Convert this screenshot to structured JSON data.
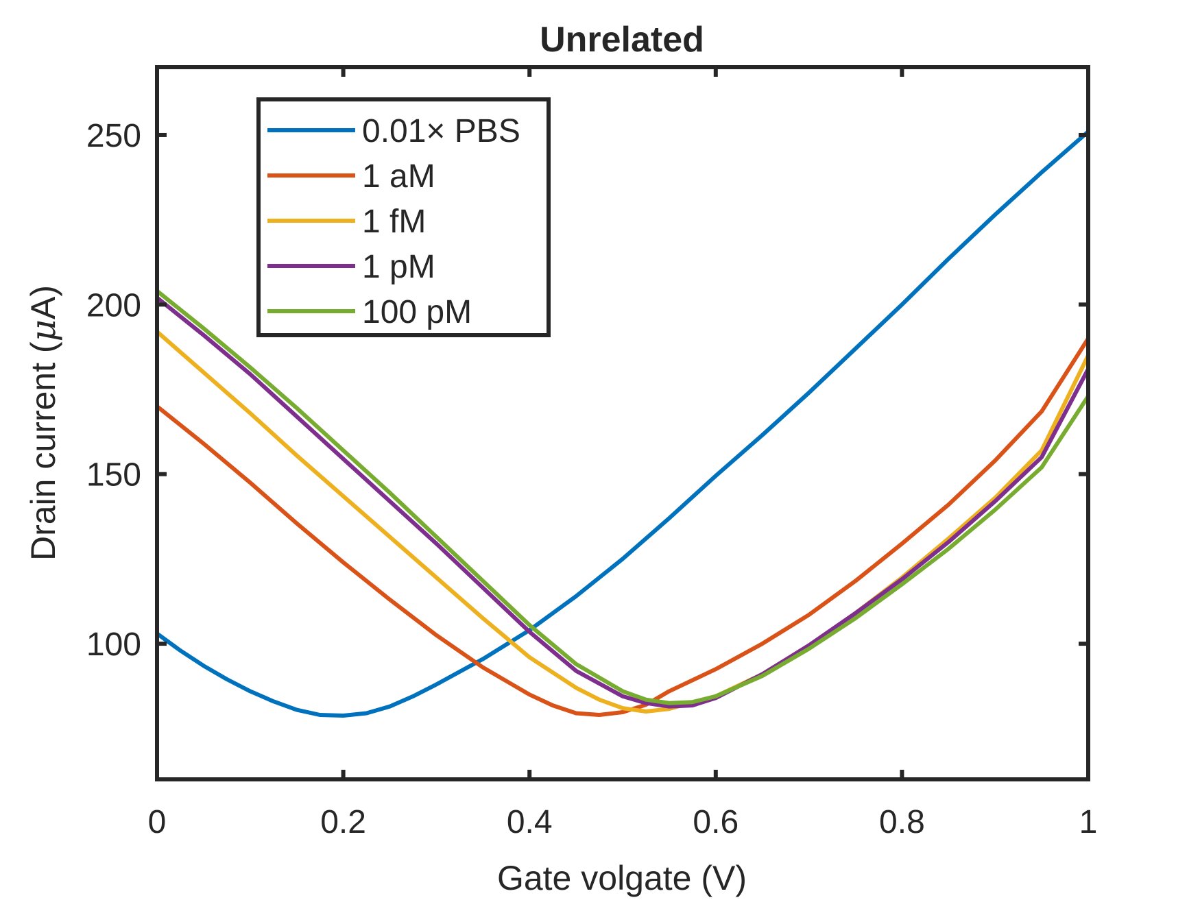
{
  "chart_data": {
    "type": "line",
    "title": "Unrelated",
    "xlabel": "Gate volgate (V)",
    "ylabel_prefix": "Drain current (",
    "ylabel_mu": "μ",
    "ylabel_suffix": "A)",
    "xlim": [
      0,
      1
    ],
    "ylim": [
      60,
      270
    ],
    "xticks": [
      0,
      0.2,
      0.4,
      0.6,
      0.8,
      1
    ],
    "xtick_labels": [
      "0",
      "0.2",
      "0.4",
      "0.6",
      "0.8",
      "1"
    ],
    "yticks": [
      100,
      150,
      200,
      250
    ],
    "ytick_labels": [
      "100",
      "150",
      "200",
      "250"
    ],
    "legend_position": "top-left",
    "grid": false,
    "series": [
      {
        "name": "0.01× PBS",
        "color": "#0072BD",
        "x": [
          0,
          0.025,
          0.05,
          0.075,
          0.1,
          0.125,
          0.15,
          0.175,
          0.2,
          0.225,
          0.25,
          0.275,
          0.3,
          0.35,
          0.4,
          0.45,
          0.5,
          0.55,
          0.6,
          0.65,
          0.7,
          0.75,
          0.8,
          0.85,
          0.9,
          0.95,
          1.0
        ],
        "values": [
          103,
          98,
          93.5,
          89.5,
          86,
          83,
          80.5,
          79,
          78.8,
          79.5,
          81.5,
          84.5,
          88,
          95.5,
          104,
          114,
          125,
          137,
          149.5,
          161.5,
          174,
          187,
          200,
          213.5,
          226.5,
          239,
          251
        ]
      },
      {
        "name": "1 aM",
        "color": "#D95319",
        "x": [
          0,
          0.05,
          0.1,
          0.15,
          0.2,
          0.25,
          0.3,
          0.35,
          0.4,
          0.425,
          0.45,
          0.475,
          0.5,
          0.525,
          0.55,
          0.6,
          0.65,
          0.7,
          0.75,
          0.8,
          0.85,
          0.9,
          0.95,
          1.0
        ],
        "values": [
          170,
          159,
          147.5,
          135.5,
          124,
          113,
          102.5,
          93,
          85,
          81.8,
          79.5,
          79,
          79.8,
          82,
          86,
          92.5,
          100,
          108.5,
          118.5,
          129.5,
          141,
          154,
          168.5,
          190
        ]
      },
      {
        "name": "1 fM",
        "color": "#EDB120",
        "x": [
          0,
          0.05,
          0.1,
          0.15,
          0.2,
          0.25,
          0.3,
          0.35,
          0.4,
          0.45,
          0.475,
          0.5,
          0.525,
          0.55,
          0.6,
          0.65,
          0.7,
          0.75,
          0.8,
          0.85,
          0.9,
          0.95,
          1.0
        ],
        "values": [
          192,
          180,
          168,
          155.5,
          143.5,
          131.5,
          119.5,
          107.5,
          96,
          87,
          83.5,
          81,
          80,
          80.8,
          84.5,
          91,
          99.5,
          109,
          119.5,
          131,
          143,
          157,
          185
        ]
      },
      {
        "name": "1 pM",
        "color": "#7E2F8E",
        "x": [
          0,
          0.05,
          0.1,
          0.15,
          0.2,
          0.25,
          0.3,
          0.35,
          0.4,
          0.45,
          0.5,
          0.525,
          0.55,
          0.575,
          0.6,
          0.65,
          0.7,
          0.75,
          0.8,
          0.85,
          0.9,
          0.95,
          1.0
        ],
        "values": [
          202,
          191,
          179.5,
          167,
          154.5,
          142,
          129.5,
          116.5,
          103.5,
          92,
          84.5,
          82.5,
          81.5,
          81.8,
          84,
          91,
          99.5,
          109,
          119,
          130,
          142,
          155,
          181
        ]
      },
      {
        "name": "100 pM",
        "color": "#77AC30",
        "x": [
          0,
          0.05,
          0.1,
          0.15,
          0.2,
          0.25,
          0.3,
          0.35,
          0.4,
          0.45,
          0.5,
          0.525,
          0.55,
          0.575,
          0.6,
          0.65,
          0.7,
          0.75,
          0.8,
          0.85,
          0.9,
          0.95,
          1.0
        ],
        "values": [
          204,
          193,
          181.5,
          169.5,
          157,
          144.5,
          131.5,
          118.5,
          105.5,
          94,
          86,
          83.5,
          82.5,
          82.8,
          84.5,
          90.5,
          98.5,
          107.5,
          117.5,
          128,
          139.5,
          152,
          173
        ]
      }
    ]
  }
}
